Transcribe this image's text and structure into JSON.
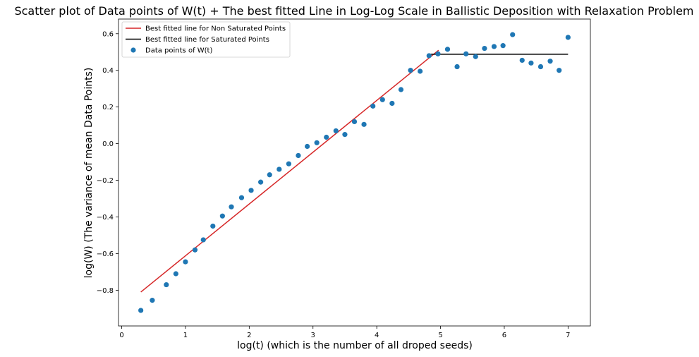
{
  "chart_data": {
    "type": "scatter",
    "title": "Scatter plot of Data points of W(t) + The best fitted Line in Log-Log Scale in Ballistic Deposition with Relaxation Problem",
    "xlabel": "log(t) (which is the number of all droped seeds)",
    "ylabel": "log(W) (The variance of mean Data Points)",
    "xlim": [
      -0.05,
      7.35
    ],
    "ylim": [
      -0.995,
      0.68
    ],
    "x_ticks": [
      0,
      1,
      2,
      3,
      4,
      5,
      6,
      7
    ],
    "x_tick_labels": [
      "0",
      "1",
      "2",
      "3",
      "4",
      "5",
      "6",
      "7"
    ],
    "y_ticks": [
      -0.8,
      -0.6,
      -0.4,
      -0.2,
      0.0,
      0.2,
      0.4,
      0.6
    ],
    "y_tick_labels": [
      "−0.8",
      "−0.6",
      "−0.4",
      "−0.2",
      "0.0",
      "0.2",
      "0.4",
      "0.6"
    ],
    "legend_position": "top-left",
    "series": [
      {
        "name": "Best fitted line for Non Saturated Points",
        "kind": "line",
        "color": "#d62728",
        "x": [
          0.3,
          4.97
        ],
        "y": [
          -0.81,
          0.51
        ]
      },
      {
        "name": "Best fitted line for Saturated Points",
        "kind": "line",
        "color": "#000000",
        "x": [
          4.8,
          7.0
        ],
        "y": [
          0.488,
          0.488
        ]
      },
      {
        "name": "Data points of W(t)",
        "kind": "scatter",
        "color": "#1f77b4",
        "x": [
          0.3,
          0.48,
          0.7,
          0.85,
          1.0,
          1.15,
          1.28,
          1.43,
          1.58,
          1.72,
          1.88,
          2.03,
          2.18,
          2.32,
          2.47,
          2.62,
          2.77,
          2.91,
          3.06,
          3.21,
          3.36,
          3.5,
          3.65,
          3.8,
          3.94,
          4.09,
          4.24,
          4.38,
          4.53,
          4.68,
          4.82,
          4.96,
          5.11,
          5.26,
          5.4,
          5.55,
          5.69,
          5.84,
          5.98,
          6.13,
          6.28,
          6.42,
          6.57,
          6.72,
          6.86,
          7.0
        ],
        "y": [
          -0.91,
          -0.855,
          -0.77,
          -0.71,
          -0.645,
          -0.58,
          -0.525,
          -0.45,
          -0.395,
          -0.345,
          -0.295,
          -0.255,
          -0.21,
          -0.17,
          -0.14,
          -0.11,
          -0.065,
          -0.015,
          0.005,
          0.035,
          0.07,
          0.05,
          0.12,
          0.105,
          0.205,
          0.24,
          0.22,
          0.295,
          0.4,
          0.395,
          0.48,
          0.49,
          0.515,
          0.42,
          0.49,
          0.475,
          0.52,
          0.53,
          0.535,
          0.595,
          0.455,
          0.44,
          0.42,
          0.45,
          0.4,
          0.58
        ]
      }
    ]
  }
}
